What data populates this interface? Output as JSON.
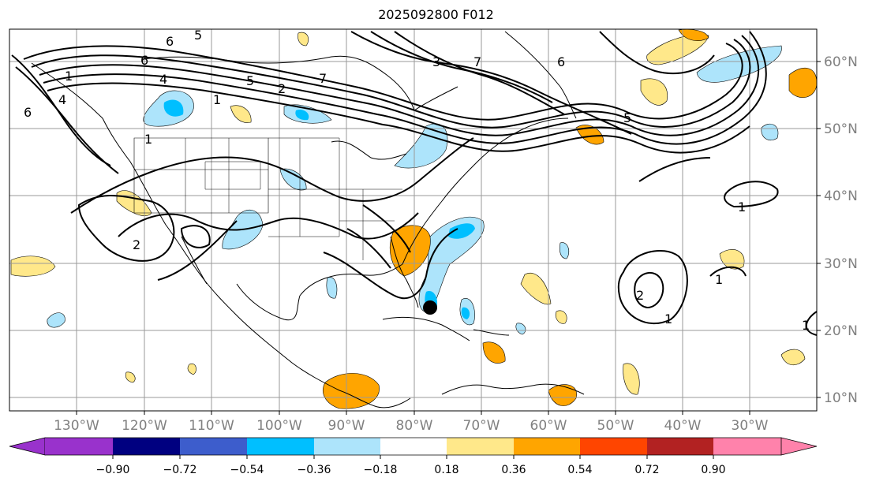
{
  "title": "2025092800 F012",
  "map": {
    "lon_labels": [
      "130°W",
      "120°W",
      "110°W",
      "100°W",
      "90°W",
      "80°W",
      "70°W",
      "60°W",
      "50°W",
      "40°W",
      "30°W"
    ],
    "lat_labels": [
      "60°N",
      "50°N",
      "40°N",
      "30°N",
      "20°N",
      "10°N"
    ],
    "contour_labels": [
      "6",
      "5",
      "6",
      "4",
      "5",
      "2",
      "1",
      "7",
      "6",
      "1",
      "3",
      "4",
      "5",
      "7",
      "6",
      "1",
      "2",
      "1",
      "1",
      "1",
      "2",
      "1"
    ],
    "marker": "storm-center-dot"
  },
  "colorbar": {
    "ticks": [
      "−0.90",
      "−0.72",
      "−0.54",
      "−0.36",
      "−0.18",
      "0.18",
      "0.36",
      "0.54",
      "0.72",
      "0.90"
    ],
    "colors": [
      "#9932cc",
      "#000080",
      "#3d5dcc",
      "#00bfff",
      "#ade4fb",
      "#ffffff",
      "#ffe88a",
      "#ffa500",
      "#ff4500",
      "#b22222",
      "#ff82ab"
    ]
  },
  "colors": {
    "grid": "#9a9a9a",
    "tick_label": "#808080",
    "contour": "#000000",
    "light_blue": "#ade4fb",
    "blue": "#00bfff",
    "yellow": "#ffe88a",
    "orange": "#ffa500"
  }
}
